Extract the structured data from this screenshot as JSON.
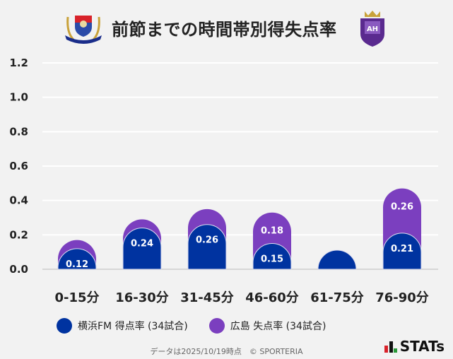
{
  "title": "前節までの時間帯別得失点率",
  "logos": {
    "home": "Yokohama F·Marinos",
    "away": "Sanfrecce Hiroshima"
  },
  "colors": {
    "home": "#0033a0",
    "away": "#7b3fbf"
  },
  "chart_data": {
    "type": "bar",
    "stacked": true,
    "categories": [
      "0-15分",
      "16-30分",
      "31-45分",
      "46-60分",
      "61-75分",
      "76-90分"
    ],
    "series": [
      {
        "name": "横浜FM 得点率 (34試合)",
        "values": [
          0.12,
          0.24,
          0.26,
          0.15,
          0.08,
          0.21
        ],
        "labels": [
          "0.12",
          "0.24",
          "0.26",
          "0.15",
          "",
          "0.21"
        ]
      },
      {
        "name": "広島 失点率 (34試合)",
        "values": [
          0.05,
          0.05,
          0.09,
          0.18,
          0.03,
          0.26
        ],
        "labels": [
          "",
          "",
          "",
          "0.18",
          "",
          "0.26"
        ]
      }
    ],
    "ylim": [
      0,
      1.2
    ],
    "yticks": [
      "0.0",
      "0.2",
      "0.4",
      "0.6",
      "0.8",
      "1.0",
      "1.2"
    ],
    "grid": true,
    "legend": "bottom"
  },
  "footer": "データは2025/10/19時点　© SPORTERIA",
  "brand": "STATs"
}
